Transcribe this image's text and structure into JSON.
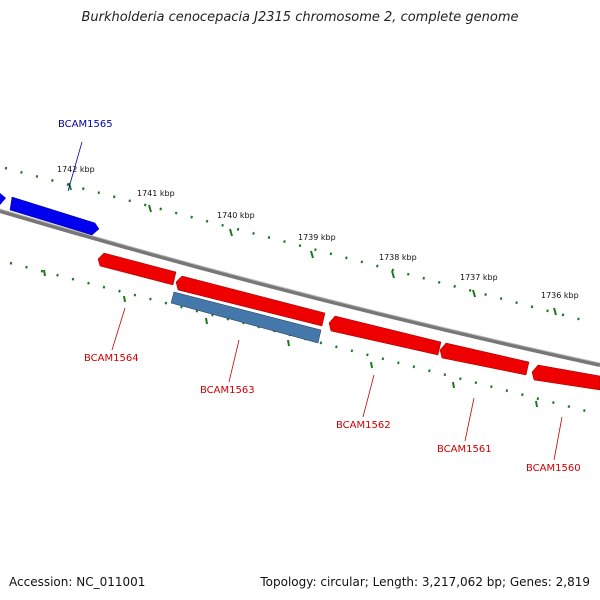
{
  "title": "Burkholderia cenocepacia J2315 chromosome 2, complete genome",
  "footer": {
    "accession": "Accession: NC_011001",
    "summary": "Topology: circular; Length: 3,217,062 bp; Genes: 2,819"
  },
  "ticks": [
    "1742 kbp",
    "1741 kbp",
    "1740 kbp",
    "1739 kbp",
    "1738 kbp",
    "1737 kbp",
    "1736 kbp"
  ],
  "genes": [
    {
      "name": "BCAM1565",
      "strand": "forward",
      "color": "#0000ee"
    },
    {
      "name": "BCAM1564",
      "strand": "reverse",
      "color": "#ee0000"
    },
    {
      "name": "BCAM1563",
      "strand": "reverse",
      "color": "#4477aa"
    },
    {
      "name": "BCAM1562",
      "strand": "reverse",
      "color": "#ee0000"
    },
    {
      "name": "BCAM1561",
      "strand": "reverse",
      "color": "#ee0000"
    },
    {
      "name": "BCAM1560",
      "strand": "reverse",
      "color": "#ee0000"
    }
  ],
  "colors": {
    "backbone": "#808080",
    "tick_mark": "#1a7a1a",
    "forward_label": "#0000aa",
    "reverse_label": "#cc0000"
  }
}
